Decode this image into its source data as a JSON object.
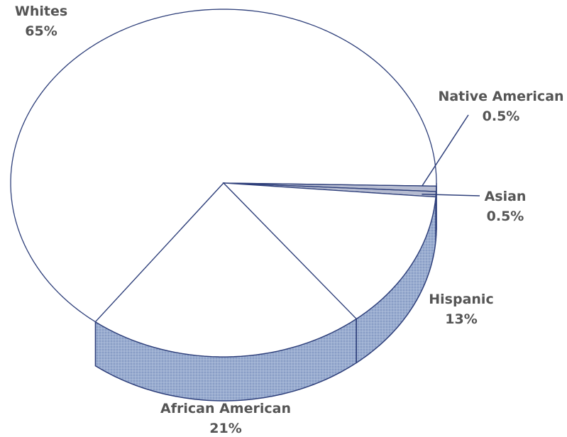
{
  "chart_data": {
    "type": "pie",
    "style": "3d",
    "title": "",
    "categories": [
      "Whites",
      "Native American",
      "Asian",
      "Hispanic",
      "African American"
    ],
    "values": [
      65,
      0.5,
      0.5,
      13,
      21
    ],
    "value_labels": [
      "65%",
      "0.5%",
      "0.5%",
      "13%",
      "21%"
    ],
    "legend": "none",
    "colors": {
      "top_fill": "#ffffff",
      "side_fill": "#8fa3c9",
      "outline": "#2e3f7a",
      "label": "#555555"
    }
  }
}
